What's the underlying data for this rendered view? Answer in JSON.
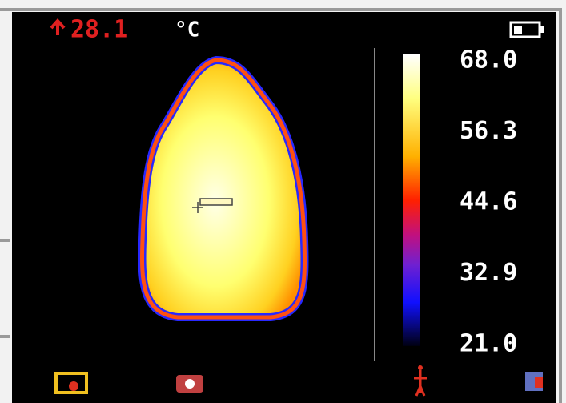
{
  "status": {
    "max_temp": "28.1",
    "unit": "°C"
  },
  "scale": {
    "labels": [
      "68.0",
      "56.3",
      "44.6",
      "32.9",
      "21.0"
    ]
  }
}
